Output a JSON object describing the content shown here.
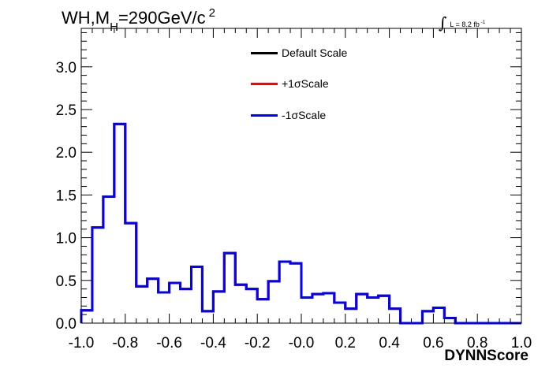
{
  "title": {
    "prefix": "WH,M",
    "subscript": "H",
    "suffix": "=290GeV/c",
    "superscript": "2"
  },
  "luminosity": {
    "integral_symbol": "∫",
    "text": "L = 8.2 fb",
    "superscript": "-1"
  },
  "chart_data": {
    "type": "line",
    "style": "histogram-step",
    "title": "WH,MH=290GeV/c2",
    "xlabel": "DYNNScore",
    "ylabel": "",
    "xlim": [
      -1.0,
      1.0
    ],
    "ylim": [
      0,
      3.45
    ],
    "x_ticks": [
      "-1.0",
      "-0.8",
      "-0.6",
      "-0.4",
      "-0.2",
      "-0.0",
      "0.2",
      "0.4",
      "0.6",
      "0.8",
      "1.0"
    ],
    "y_ticks": [
      "0.0",
      "0.5",
      "1.0",
      "1.5",
      "2.0",
      "2.5",
      "3.0"
    ],
    "grid": false,
    "legend_placement": "top-center",
    "bin_edges": [
      -1.0,
      -0.95,
      -0.9,
      -0.85,
      -0.8,
      -0.75,
      -0.7,
      -0.65,
      -0.6,
      -0.55,
      -0.5,
      -0.45,
      -0.4,
      -0.35,
      -0.3,
      -0.25,
      -0.2,
      -0.15,
      -0.1,
      -0.05,
      0.0,
      0.05,
      0.1,
      0.15,
      0.2,
      0.25,
      0.3,
      0.35,
      0.4,
      0.45,
      0.5,
      0.55,
      0.6,
      0.65,
      0.7,
      0.75,
      0.8,
      0.85,
      0.9,
      0.95,
      1.0
    ],
    "series": [
      {
        "name": "Default Scale",
        "color": "#000000",
        "values": [
          0.15,
          1.12,
          1.48,
          2.33,
          1.17,
          0.43,
          0.52,
          0.36,
          0.47,
          0.4,
          0.66,
          0.14,
          0.37,
          0.82,
          0.45,
          0.4,
          0.28,
          0.49,
          0.72,
          0.7,
          0.3,
          0.34,
          0.35,
          0.24,
          0.17,
          0.34,
          0.3,
          0.32,
          0.17,
          0.0,
          0.0,
          0.14,
          0.18,
          0.06,
          0.0,
          0.0,
          0.0,
          0.0,
          0.0,
          0.0
        ]
      },
      {
        "name": "+1σScale",
        "color": "#ff0000",
        "values": [
          0.15,
          1.12,
          1.48,
          2.33,
          1.17,
          0.43,
          0.52,
          0.36,
          0.47,
          0.4,
          0.66,
          0.14,
          0.37,
          0.82,
          0.45,
          0.4,
          0.28,
          0.49,
          0.72,
          0.7,
          0.3,
          0.34,
          0.35,
          0.24,
          0.17,
          0.34,
          0.3,
          0.32,
          0.17,
          0.0,
          0.0,
          0.14,
          0.18,
          0.06,
          0.0,
          0.0,
          0.0,
          0.0,
          0.0,
          0.0
        ]
      },
      {
        "name": "-1σScale",
        "color": "#0000ff",
        "values": [
          0.15,
          1.12,
          1.48,
          2.33,
          1.17,
          0.43,
          0.52,
          0.36,
          0.47,
          0.4,
          0.66,
          0.14,
          0.37,
          0.82,
          0.45,
          0.4,
          0.28,
          0.49,
          0.72,
          0.7,
          0.3,
          0.34,
          0.35,
          0.24,
          0.17,
          0.34,
          0.3,
          0.32,
          0.17,
          0.0,
          0.0,
          0.14,
          0.18,
          0.06,
          0.0,
          0.0,
          0.0,
          0.0,
          0.0,
          0.0
        ]
      }
    ]
  }
}
